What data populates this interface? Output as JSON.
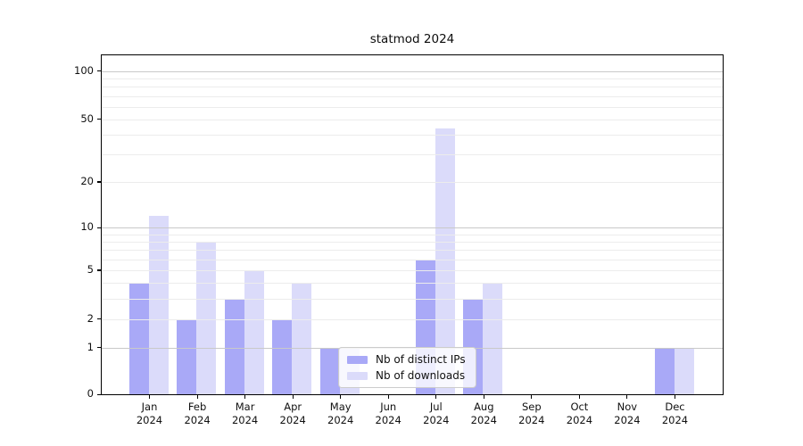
{
  "chart_data": {
    "type": "bar",
    "title": "statmod 2024",
    "categories": [
      "Jan",
      "Feb",
      "Mar",
      "Apr",
      "May",
      "Jun",
      "Jul",
      "Aug",
      "Sep",
      "Oct",
      "Nov",
      "Dec"
    ],
    "year_label": "2024",
    "series": [
      {
        "name": "Nb of distinct IPs",
        "color": "#a9a9f7",
        "values": [
          4,
          2,
          3,
          2,
          1,
          0,
          6,
          3,
          0,
          0,
          0,
          1
        ]
      },
      {
        "name": "Nb of downloads",
        "color": "#dbdbfa",
        "values": [
          12,
          8,
          5,
          4,
          1,
          0,
          44,
          4,
          0,
          0,
          0,
          1
        ]
      }
    ],
    "xlabel": "",
    "ylabel": "",
    "yscale": "log1p",
    "ylim": [
      0,
      126
    ],
    "yticks": [
      0,
      1,
      2,
      5,
      10,
      20,
      50,
      100
    ],
    "grid": true,
    "grid_major_values": [
      1,
      10,
      100
    ],
    "grid_minor_values": [
      2,
      3,
      4,
      5,
      6,
      7,
      8,
      9,
      20,
      30,
      40,
      50,
      60,
      70,
      80,
      90
    ],
    "legend_position": "lower center"
  },
  "colors": {
    "grid_major": "#c9c9c9",
    "grid_minor": "#ececec",
    "axis": "#000000",
    "legend_border": "#cccccc"
  }
}
